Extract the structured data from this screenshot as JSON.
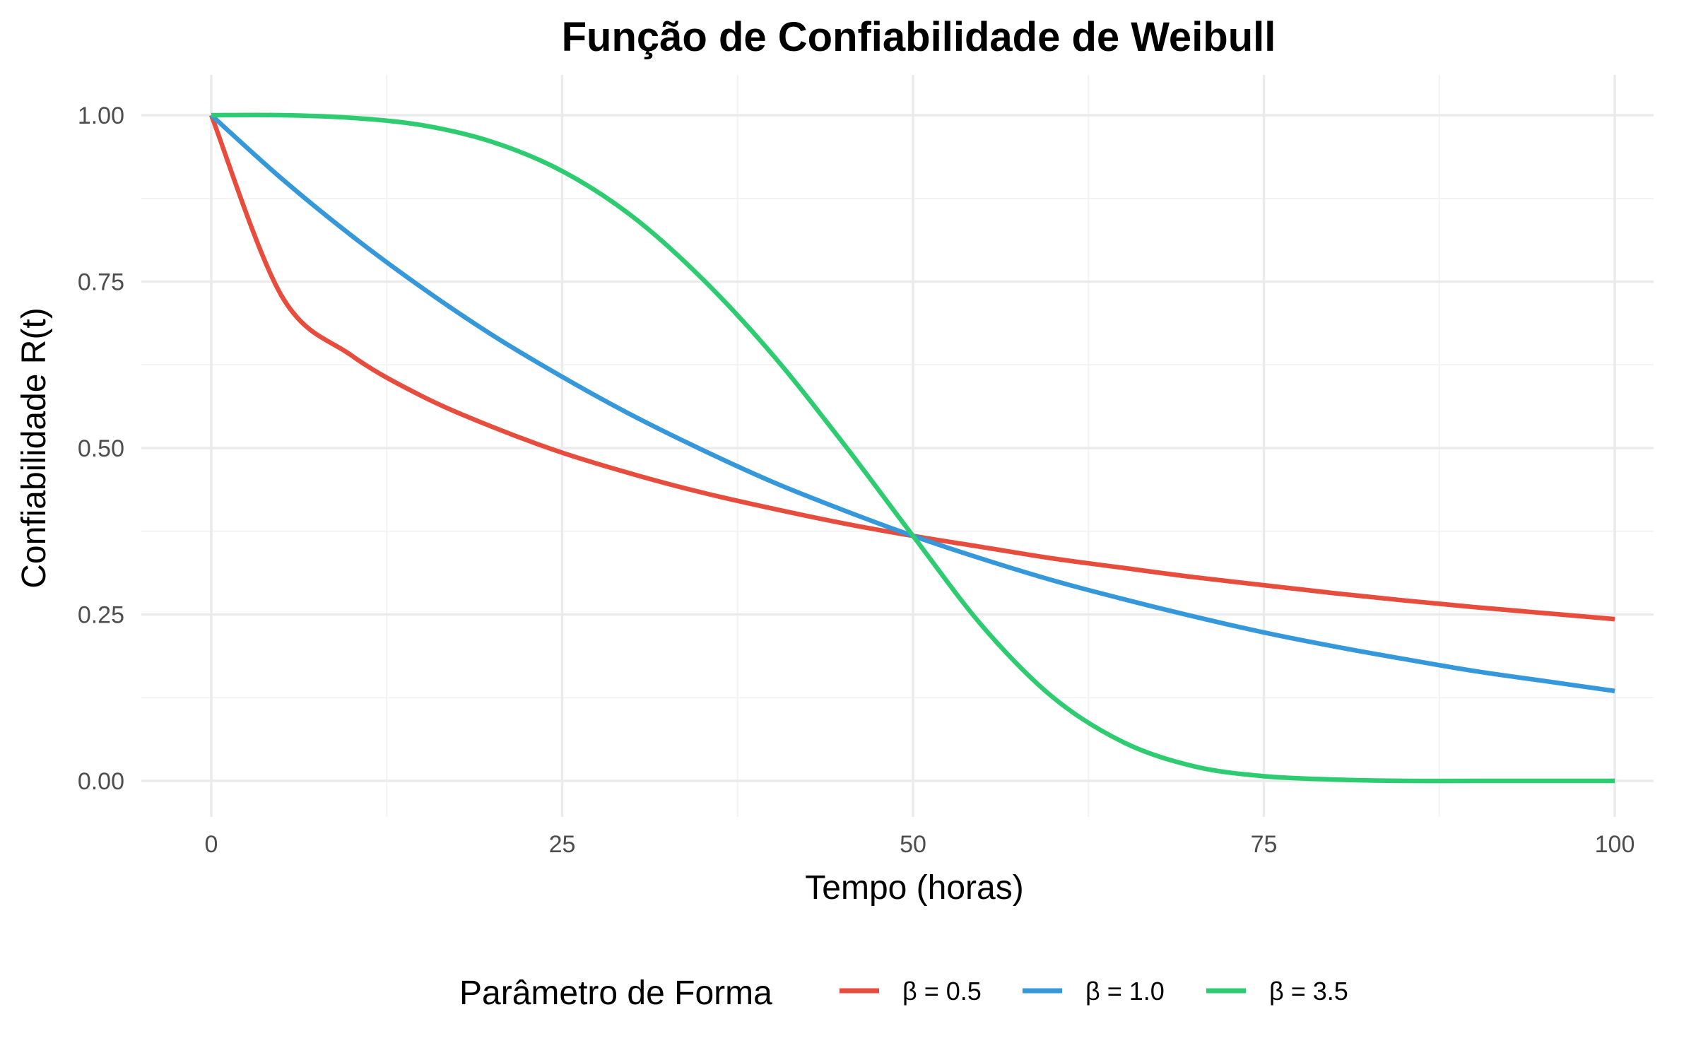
{
  "chart_data": {
    "type": "line",
    "title": "Função de Confiabilidade de Weibull",
    "xlabel": "Tempo (horas)",
    "ylabel": "Confiabilidade R(t)",
    "xlim": [
      0,
      100
    ],
    "ylim": [
      0,
      1
    ],
    "x_ticks": [
      0,
      25,
      50,
      75,
      100
    ],
    "x_tick_labels": [
      "0",
      "25",
      "50",
      "75",
      "100"
    ],
    "y_ticks": [
      0,
      0.25,
      0.5,
      0.75,
      1
    ],
    "y_tick_labels": [
      "0.00",
      "0.25",
      "0.50",
      "0.75",
      "1.00"
    ],
    "grid": true,
    "legend": {
      "title": "Parâmetro de Forma",
      "position": "bottom"
    },
    "x": [
      0,
      5,
      10,
      15,
      20,
      25,
      30,
      35,
      40,
      45,
      50,
      55,
      60,
      65,
      70,
      75,
      80,
      85,
      90,
      95,
      100
    ],
    "series": [
      {
        "name": "β = 0.5",
        "color": "#E74C3C",
        "values": [
          1.0,
          0.729,
          0.639,
          0.578,
          0.532,
          0.493,
          0.461,
          0.433,
          0.409,
          0.387,
          0.368,
          0.351,
          0.334,
          0.32,
          0.306,
          0.294,
          0.282,
          0.271,
          0.261,
          0.252,
          0.243
        ]
      },
      {
        "name": "β = 1.0",
        "color": "#3498DB",
        "values": [
          1.0,
          0.905,
          0.819,
          0.741,
          0.67,
          0.607,
          0.549,
          0.497,
          0.449,
          0.407,
          0.368,
          0.333,
          0.301,
          0.273,
          0.247,
          0.223,
          0.202,
          0.183,
          0.165,
          0.15,
          0.135
        ]
      },
      {
        "name": "β = 3.5",
        "color": "#2ECC71",
        "values": [
          1.0,
          1.0,
          0.996,
          0.985,
          0.96,
          0.916,
          0.848,
          0.754,
          0.64,
          0.508,
          0.368,
          0.231,
          0.125,
          0.058,
          0.022,
          0.007,
          0.002,
          0.0,
          0.0,
          0.0,
          0.0
        ]
      }
    ]
  }
}
